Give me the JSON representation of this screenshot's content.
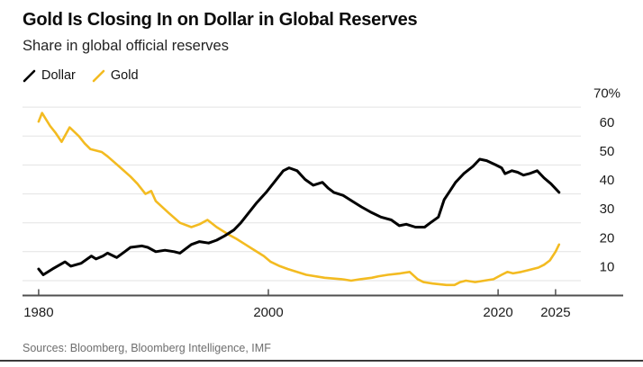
{
  "header": {
    "title": "Gold Is Closing In on Dollar in Global Reserves",
    "subtitle": "Share in global official reserves"
  },
  "legend": {
    "items": [
      {
        "label": "Dollar",
        "color": "#000000"
      },
      {
        "label": "Gold",
        "color": "#F3BB21"
      }
    ]
  },
  "footer": {
    "source_note": "Sources: Bloomberg, Bloomberg Intelligence, IMF"
  },
  "colors": {
    "background": "#ffffff",
    "gridline": "#e3e3e3",
    "axis": "#4f4f4f",
    "tick_label": "#1c1c1c",
    "source_text": "#6e6e6e",
    "bottom_rule": "#3a3a3a"
  },
  "chart_data": {
    "type": "line",
    "title": "Gold Is Closing In on Dollar in Global Reserves",
    "subtitle": "Share in global official reserves",
    "unit": "percent of global official reserves",
    "grid": "horizontal",
    "legend_position": "top-left",
    "x_axis": {
      "ticks": [
        1980,
        2000,
        2020,
        2025
      ],
      "tick_labels": [
        "1980",
        "2000",
        "2020",
        "2025"
      ],
      "range": [
        1978.6,
        2027.2
      ]
    },
    "y_axis": {
      "side": "right",
      "ticks": [
        10,
        20,
        30,
        40,
        50,
        60,
        70
      ],
      "tick_labels": [
        "10",
        "20",
        "30",
        "40",
        "50",
        "60",
        "70%"
      ],
      "range": [
        4.7,
        74.4
      ]
    },
    "series": [
      {
        "name": "Gold",
        "color": "#F3BB21",
        "line_width": 2.6,
        "x": [
          1980.0,
          1980.3,
          1981.0,
          1981.5,
          1982.0,
          1982.7,
          1983.5,
          1984.0,
          1984.5,
          1985.5,
          1986.0,
          1987.0,
          1988.0,
          1988.6,
          1989.3,
          1989.8,
          1990.2,
          1991.3,
          1992.3,
          1993.3,
          1994.0,
          1994.7,
          1995.5,
          1996.5,
          1997.2,
          1998.0,
          1998.6,
          1999.6,
          2000.2,
          2001.0,
          2001.7,
          2003.3,
          2004.9,
          2006.4,
          2007.2,
          2008.0,
          2009.0,
          2009.6,
          2010.4,
          2011.5,
          2012.3,
          2013.0,
          2013.5,
          2014.3,
          2015.5,
          2016.2,
          2016.7,
          2017.2,
          2018.0,
          2018.8,
          2019.6,
          2020.3,
          2020.8,
          2021.3,
          2022.0,
          2022.5,
          2023.0,
          2023.5,
          2024.0,
          2024.5,
          2025.0,
          2025.3
        ],
        "y": [
          65,
          68,
          63.5,
          61,
          58,
          63,
          60,
          57.5,
          55.5,
          54.5,
          53,
          49.5,
          46,
          43.5,
          40,
          41,
          37.5,
          33.5,
          30,
          28.5,
          29.5,
          31,
          28.5,
          26,
          24.5,
          22.5,
          21,
          18.5,
          16.5,
          15,
          14,
          12,
          11,
          10.5,
          10,
          10.5,
          11,
          11.5,
          12,
          12.5,
          13,
          10.5,
          9.5,
          9,
          8.5,
          8.5,
          9.5,
          10,
          9.5,
          10,
          10.5,
          12,
          13,
          12.5,
          13,
          13.5,
          14,
          14.5,
          15.5,
          17,
          20,
          22.5
        ]
      },
      {
        "name": "Dollar",
        "color": "#000000",
        "line_width": 3,
        "x": [
          1980.0,
          1980.4,
          1981.2,
          1982.3,
          1982.8,
          1983.7,
          1984.6,
          1985.0,
          1985.6,
          1986.0,
          1986.8,
          1987.5,
          1988.0,
          1989.0,
          1989.5,
          1990.2,
          1991.0,
          1991.8,
          1992.3,
          1993.3,
          1994.0,
          1994.8,
          1995.5,
          1996.2,
          1997.0,
          1997.6,
          1998.2,
          1999.0,
          1999.8,
          2000.5,
          2001.3,
          2001.8,
          2002.5,
          2003.2,
          2003.9,
          2004.7,
          2005.2,
          2005.7,
          2006.5,
          2007.3,
          2008.1,
          2009.0,
          2009.8,
          2010.7,
          2011.4,
          2012.0,
          2012.8,
          2013.6,
          2014.1,
          2014.8,
          2015.3,
          2015.8,
          2016.3,
          2017.0,
          2017.8,
          2018.4,
          2019.0,
          2019.8,
          2020.3,
          2020.6,
          2021.2,
          2021.7,
          2022.2,
          2022.7,
          2023.4,
          2024.0,
          2024.6,
          2025.3
        ],
        "y": [
          14,
          12,
          14,
          16.5,
          15,
          16,
          18.5,
          17.5,
          18.5,
          19.5,
          18,
          20,
          21.5,
          22,
          21.5,
          20,
          20.5,
          20,
          19.5,
          22.5,
          23.5,
          23,
          24,
          25.5,
          27.5,
          30,
          33,
          37,
          40.5,
          44,
          48,
          49,
          48,
          45,
          43,
          44,
          42,
          40.5,
          39.5,
          37.5,
          35.5,
          33.5,
          32,
          31,
          29,
          29.5,
          28.5,
          28.5,
          30,
          32,
          38,
          41,
          44,
          47,
          49.5,
          52,
          51.5,
          50,
          49,
          47,
          48,
          47.5,
          46.5,
          47,
          48,
          45.5,
          43.5,
          40.5
        ]
      }
    ]
  }
}
